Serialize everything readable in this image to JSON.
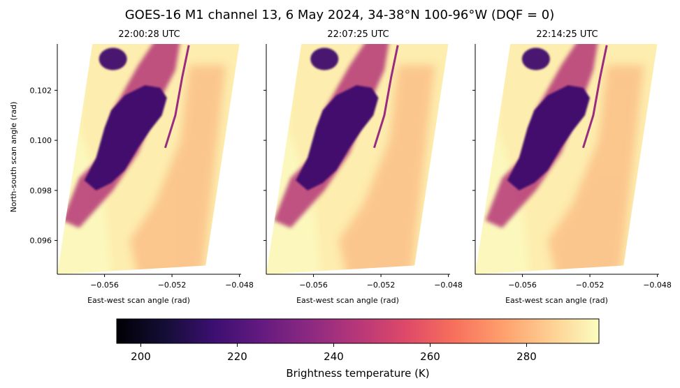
{
  "figure": {
    "title": "GOES-16 M1 channel 13, 6 May 2024, 34-38°N 100-96°W (DQF = 0)"
  },
  "chart_data": [
    {
      "type": "heatmap",
      "title": "22:00:28 UTC",
      "xlabel": "East-west scan angle (rad)",
      "ylabel": "North-south scan angle (rad)",
      "xlim": [
        -0.0588,
        -0.0479
      ],
      "ylim": [
        0.09465,
        0.10385
      ],
      "xticks": [
        "−0.056",
        "−0.052",
        "−0.048"
      ],
      "yticks": [
        "0.096",
        "0.098",
        "0.100",
        "0.102"
      ],
      "colormap": "magma",
      "storm_shift": 0.0
    },
    {
      "type": "heatmap",
      "title": "22:07:25 UTC",
      "xlabel": "East-west scan angle (rad)",
      "ylabel": "",
      "xlim": [
        -0.0588,
        -0.0479
      ],
      "ylim": [
        0.09465,
        0.10385
      ],
      "xticks": [
        "−0.056",
        "−0.052",
        "−0.048"
      ],
      "yticks": [],
      "colormap": "magma",
      "storm_shift": 0.00015
    },
    {
      "type": "heatmap",
      "title": "22:14:25 UTC",
      "xlabel": "East-west scan angle (rad)",
      "ylabel": "",
      "xlim": [
        -0.0588,
        -0.0479
      ],
      "ylim": [
        0.09465,
        0.10385
      ],
      "xticks": [
        "−0.056",
        "−0.052",
        "−0.048"
      ],
      "yticks": [],
      "colormap": "magma",
      "storm_shift": 0.0003
    }
  ],
  "colorbar": {
    "label": "Brightness temperature (K)",
    "vmin": 195,
    "vmax": 295,
    "ticks": [
      200,
      220,
      240,
      260,
      280
    ],
    "tick_labels": [
      "200",
      "220",
      "240",
      "260",
      "280"
    ],
    "colormap": "magma"
  }
}
